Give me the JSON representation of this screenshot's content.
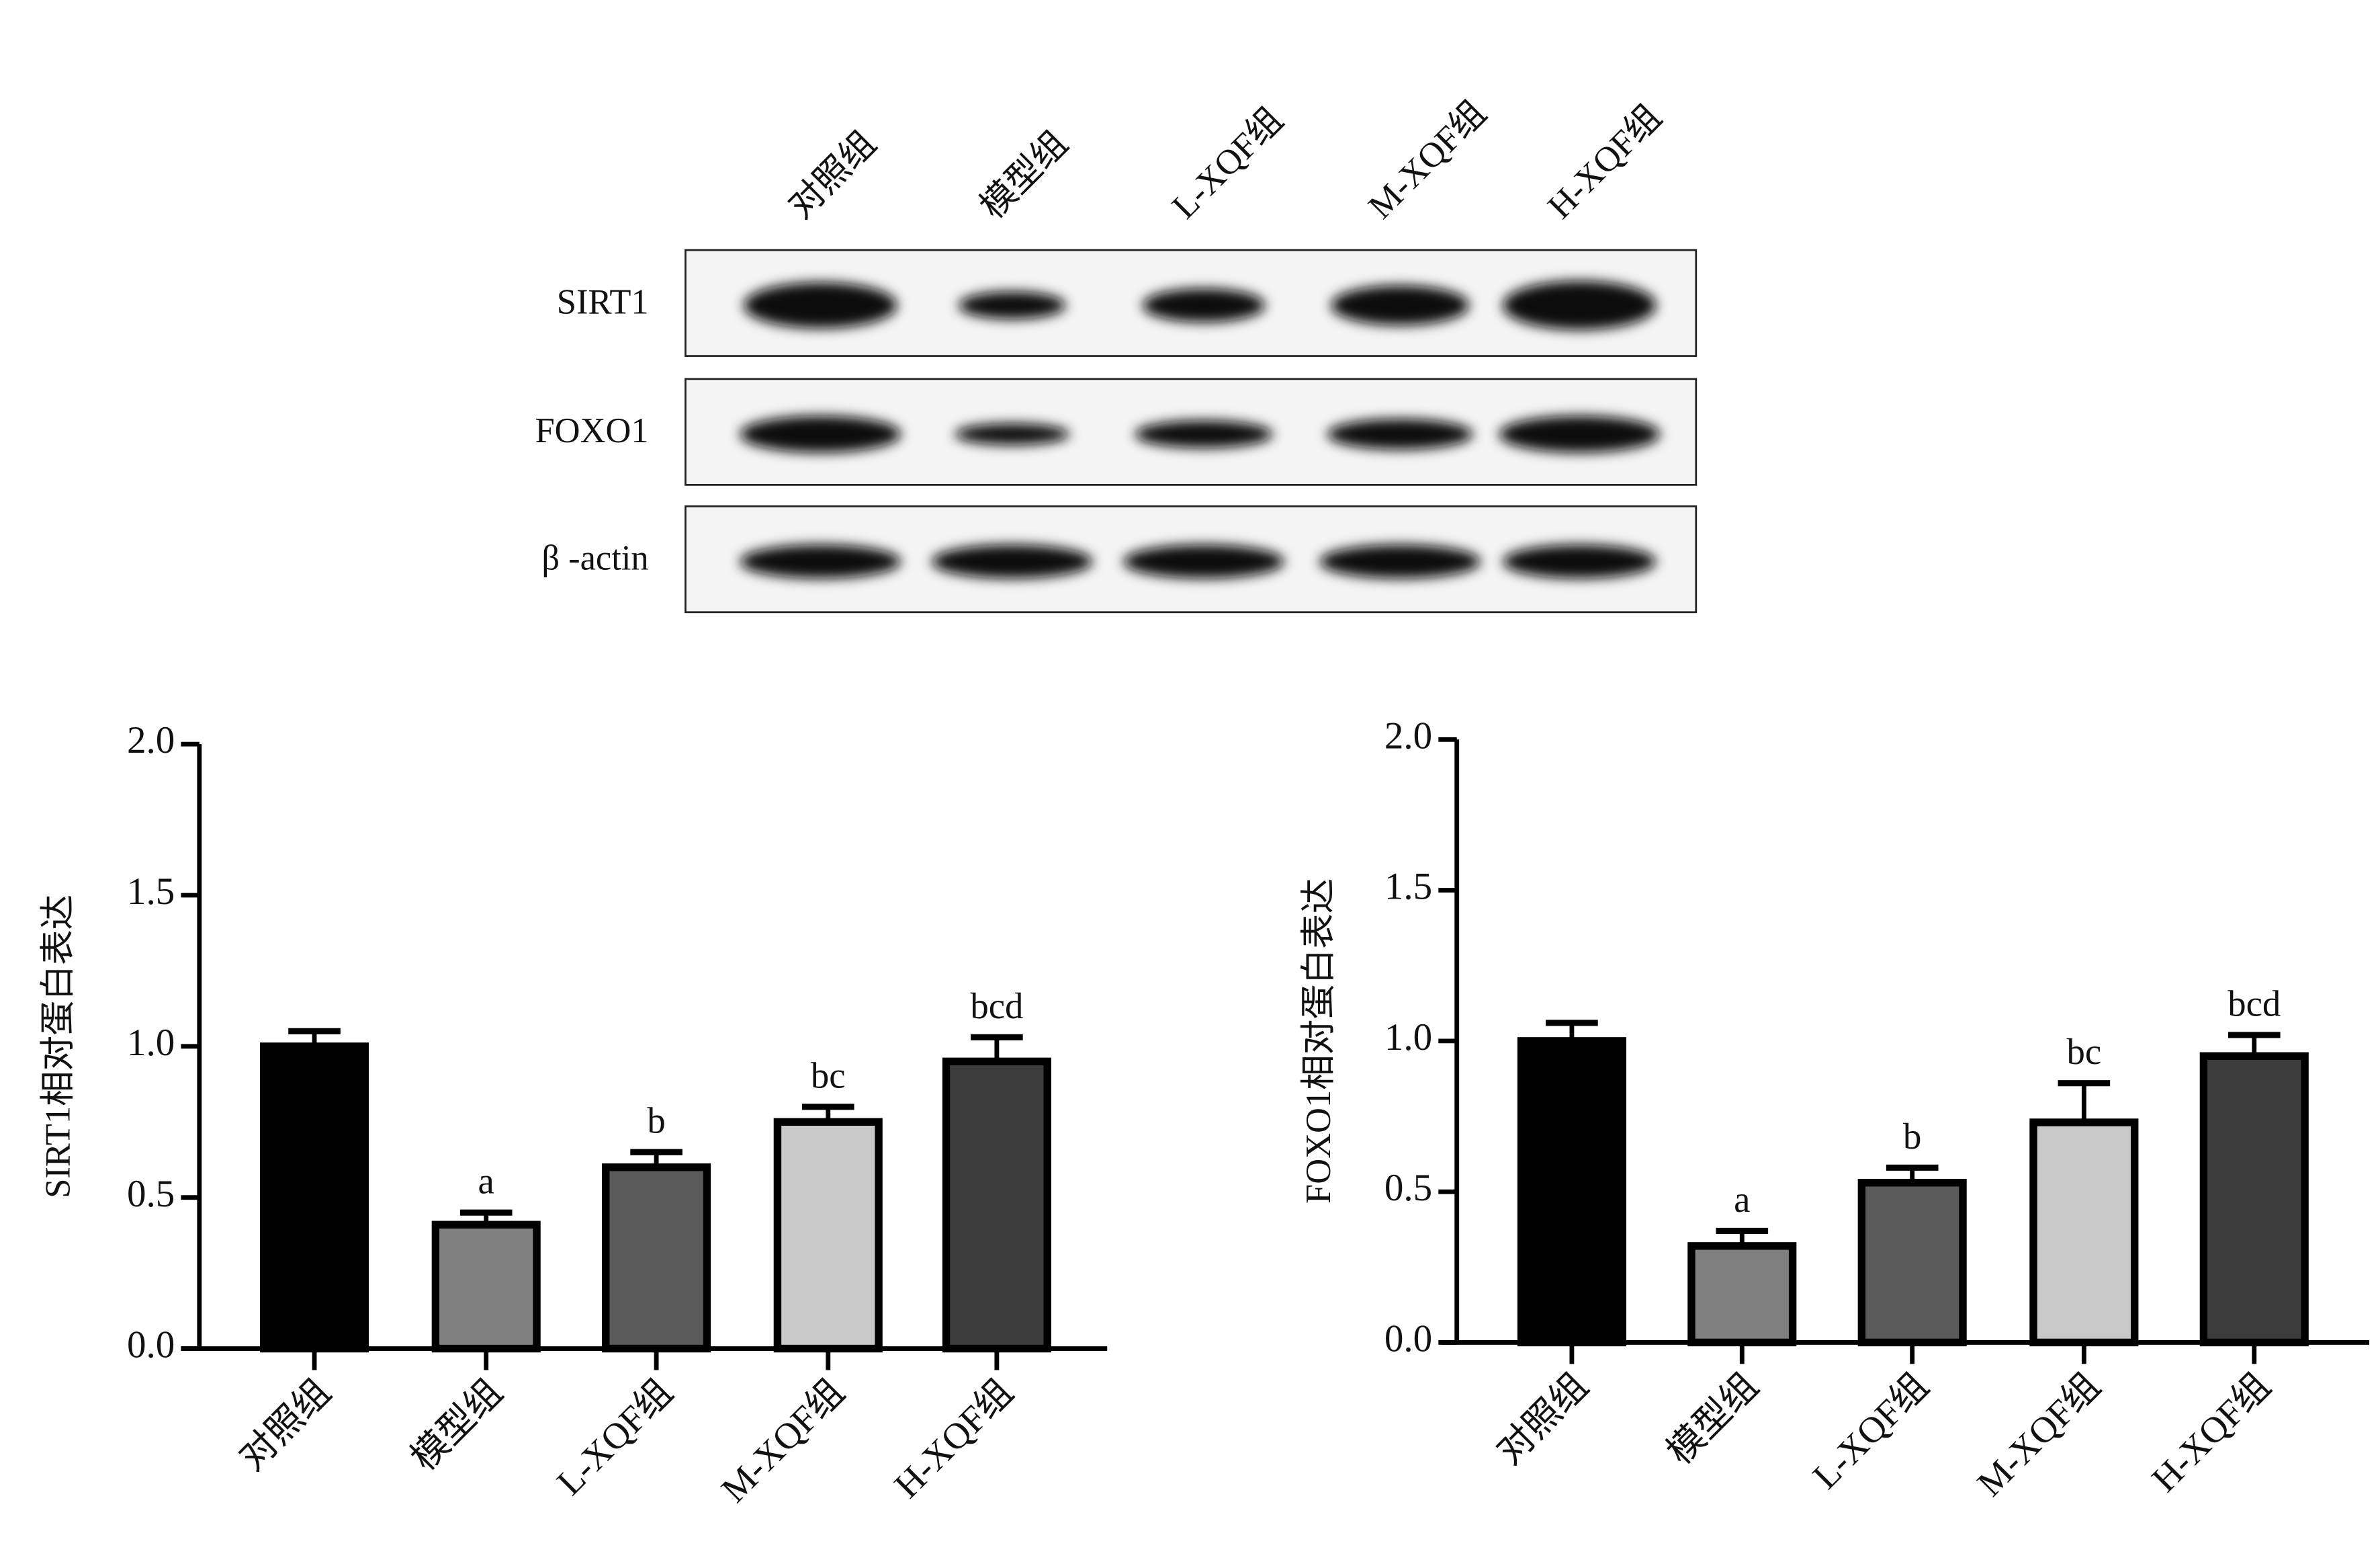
{
  "blot": {
    "columns": [
      "对照组",
      "模型组",
      "L-XQF组",
      "M-XQF组",
      "H-XQF组"
    ],
    "rows": [
      "SIRT1",
      "FOXO1",
      "β -actin"
    ]
  },
  "chart_data": [
    {
      "type": "bar",
      "y_label": "SIRT1相对蛋白表达",
      "categories": [
        "对照组",
        "模型组",
        "L-XQF组",
        "M-XQF组",
        "H-XQF组"
      ],
      "values": [
        1.0,
        0.41,
        0.6,
        0.75,
        0.95
      ],
      "errors": [
        0.05,
        0.04,
        0.05,
        0.05,
        0.08
      ],
      "annotations": [
        null,
        "a",
        "b",
        "bc",
        "bcd"
      ],
      "colors": [
        "#000000",
        "#808080",
        "#5a5a5a",
        "#c8c8c8",
        "#3c3c3c"
      ],
      "ylim": [
        0,
        2
      ],
      "yticks": [
        {
          "value": 0,
          "label": "0.0"
        },
        {
          "value": 0.5,
          "label": "0.5"
        },
        {
          "value": 1,
          "label": "1.0"
        },
        {
          "value": 1.5,
          "label": "1.5"
        },
        {
          "value": 2,
          "label": "2.0"
        }
      ]
    },
    {
      "type": "bar",
      "y_label": "FOXO1相对蛋白表达",
      "categories": [
        "对照组",
        "模型组",
        "L-XQF组",
        "M-XQF组",
        "H-XQF组"
      ],
      "values": [
        1.0,
        0.32,
        0.53,
        0.73,
        0.95
      ],
      "errors": [
        0.06,
        0.05,
        0.05,
        0.13,
        0.07
      ],
      "annotations": [
        null,
        "a",
        "b",
        "bc",
        "bcd"
      ],
      "colors": [
        "#000000",
        "#808080",
        "#5a5a5a",
        "#c8c8c8",
        "#3c3c3c"
      ],
      "ylim": [
        0,
        2
      ],
      "yticks": [
        {
          "value": 0,
          "label": "0.0"
        },
        {
          "value": 0.5,
          "label": "0.5"
        },
        {
          "value": 1,
          "label": "1.0"
        },
        {
          "value": 1.5,
          "label": "1.5"
        },
        {
          "value": 2,
          "label": "2.0"
        }
      ]
    }
  ]
}
